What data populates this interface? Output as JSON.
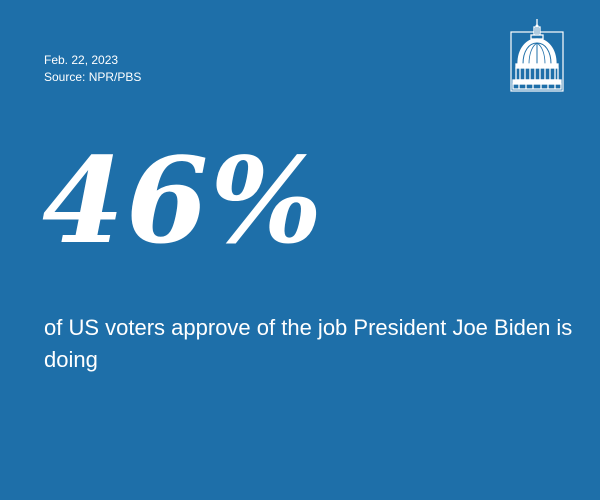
{
  "meta": {
    "date": "Feb. 22, 2023",
    "source": "Source: NPR/PBS"
  },
  "logo": {
    "icon": "capitol-dome-icon"
  },
  "stat": {
    "value": "46%",
    "description": "of US voters approve of the job President Joe Biden is doing"
  },
  "colors": {
    "background": "#1e6fa9",
    "text": "#ffffff"
  }
}
